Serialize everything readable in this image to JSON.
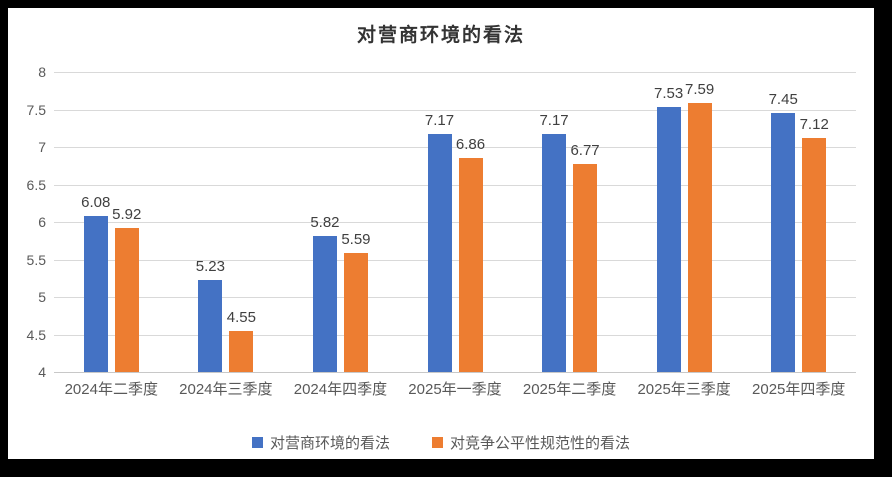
{
  "frame": {
    "border_color": "#000000",
    "background": "#ffffff"
  },
  "chart_data": {
    "type": "bar",
    "title": "对营商环境的看法",
    "categories": [
      "2024年二季度",
      "2024年三季度",
      "2024年四季度",
      "2025年一季度",
      "2025年二季度",
      "2025年三季度",
      "2025年四季度"
    ],
    "series": [
      {
        "name": "对营商环境的看法",
        "color": "#4472C4",
        "values": [
          6.08,
          5.23,
          5.82,
          7.17,
          7.17,
          7.53,
          7.45
        ],
        "labels": [
          "6.08",
          "5.23",
          "5.82",
          "7.17",
          "7.17",
          "7.53",
          "7.45"
        ]
      },
      {
        "name": "对竞争公平性规范性的看法",
        "color": "#ED7D31",
        "values": [
          5.92,
          4.55,
          5.59,
          6.86,
          6.77,
          7.59,
          7.12
        ],
        "labels": [
          "5.92",
          "4.55",
          "5.59",
          "6.86",
          "6.77",
          "7.59",
          "7.12"
        ]
      }
    ],
    "xlabel": "",
    "ylabel": "",
    "ylim": [
      4,
      8
    ],
    "ytick_step": 0.5,
    "ytick_labels": [
      "4",
      "4.5",
      "5",
      "5.5",
      "6",
      "6.5",
      "7",
      "7.5",
      "8"
    ],
    "grid": true,
    "data_labels": true,
    "legend_position": "bottom",
    "text_color": "#595959",
    "label_color": "#404040",
    "gridline_color": "#d9d9d9"
  }
}
